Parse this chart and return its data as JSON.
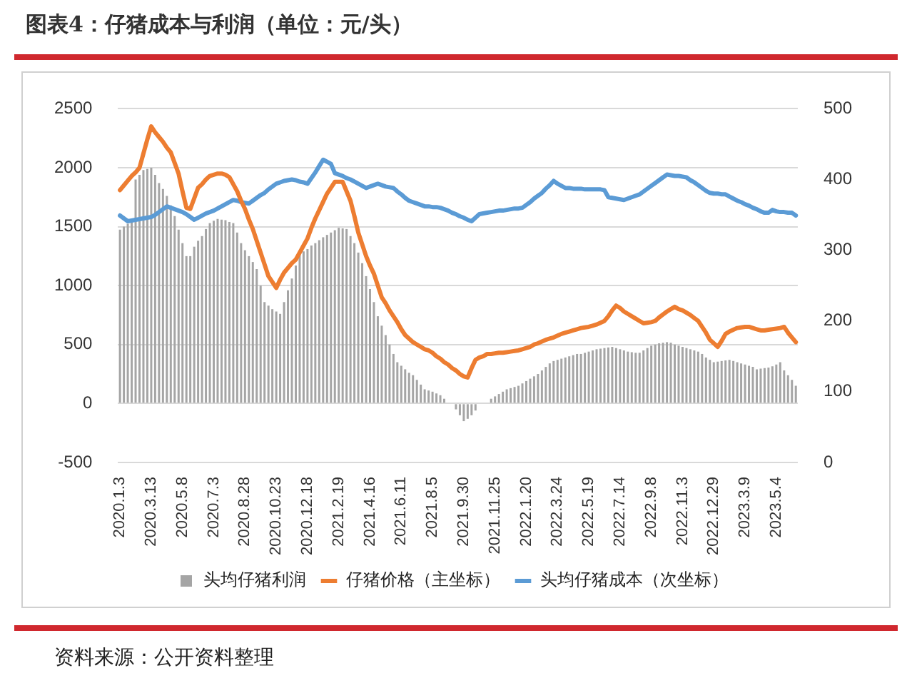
{
  "chart_data": {
    "type": "bar",
    "title": "图表4：仔猪成本与利润（单位：元/头）",
    "categories": [
      "2020.1.3",
      null,
      null,
      null,
      null,
      null,
      null,
      null,
      "2020.3.13",
      null,
      null,
      null,
      null,
      null,
      null,
      null,
      "2020.5.8",
      null,
      null,
      null,
      null,
      null,
      null,
      null,
      "2020.7.3",
      null,
      null,
      null,
      null,
      null,
      null,
      null,
      "2020.8.28",
      null,
      null,
      null,
      null,
      null,
      null,
      null,
      "2020.10.23",
      null,
      null,
      null,
      null,
      null,
      null,
      null,
      "2020.12.18",
      null,
      null,
      null,
      null,
      null,
      null,
      null,
      "2021.2.19",
      null,
      null,
      null,
      null,
      null,
      null,
      null,
      "2021.4.16",
      null,
      null,
      null,
      null,
      null,
      null,
      null,
      "2021.6.11",
      null,
      null,
      null,
      null,
      null,
      null,
      null,
      "2021.8.5",
      null,
      null,
      null,
      null,
      null,
      null,
      null,
      "2021.9.30",
      null,
      null,
      null,
      null,
      null,
      null,
      null,
      "2021.11.25",
      null,
      null,
      null,
      null,
      null,
      null,
      null,
      "2022.1.20",
      null,
      null,
      null,
      null,
      null,
      null,
      null,
      "2022.3.24",
      null,
      null,
      null,
      null,
      null,
      null,
      null,
      "2022.5.19",
      null,
      null,
      null,
      null,
      null,
      null,
      null,
      "2022.7.14",
      null,
      null,
      null,
      null,
      null,
      null,
      null,
      "2022.9.8",
      null,
      null,
      null,
      null,
      null,
      null,
      null,
      "2022.11.3",
      null,
      null,
      null,
      null,
      null,
      null,
      null,
      "2022.12.29",
      null,
      null,
      null,
      null,
      null,
      null,
      null,
      "2023.3.9",
      null,
      null,
      null,
      null,
      null,
      null,
      null,
      "2023.5.4",
      null,
      null,
      null,
      null,
      null
    ],
    "series": [
      {
        "name": "头均仔猪利润",
        "color": "#a5a5a5",
        "values": [
          1475,
          1500,
          1525,
          1550,
          1900,
          1940,
          1980,
          1990,
          2000,
          1940,
          1870,
          1820,
          1760,
          1680,
          1590,
          1475,
          1360,
          1250,
          1250,
          1330,
          1380,
          1420,
          1480,
          1530,
          1550,
          1565,
          1560,
          1555,
          1540,
          1530,
          1450,
          1360,
          1300,
          1250,
          1200,
          1140,
          1000,
          860,
          830,
          800,
          780,
          760,
          860,
          960,
          1060,
          1170,
          1270,
          1290,
          1310,
          1340,
          1360,
          1385,
          1410,
          1430,
          1450,
          1470,
          1490,
          1485,
          1480,
          1420,
          1360,
          1280,
          1190,
          1080,
          970,
          860,
          740,
          660,
          580,
          500,
          420,
          350,
          320,
          290,
          260,
          240,
          200,
          160,
          120,
          110,
          100,
          85,
          70,
          40,
          null,
          0,
          -50,
          -100,
          -150,
          -130,
          -100,
          -60,
          null,
          0,
          null,
          40,
          60,
          80,
          100,
          120,
          130,
          140,
          150,
          170,
          190,
          210,
          230,
          250,
          280,
          310,
          340,
          360,
          370,
          380,
          390,
          400,
          410,
          420,
          420,
          430,
          440,
          450,
          460,
          465,
          470,
          475,
          480,
          470,
          460,
          450,
          440,
          435,
          430,
          430,
          450,
          470,
          490,
          500,
          510,
          515,
          520,
          515,
          500,
          490,
          480,
          470,
          460,
          450,
          440,
          420,
          390,
          370,
          350,
          355,
          360,
          365,
          370,
          360,
          350,
          340,
          330,
          320,
          310,
          290,
          295,
          300,
          305,
          315,
          330,
          350,
          280,
          240,
          200,
          150
        ]
      },
      {
        "name": "仔猪价格（主坐标）",
        "type": "line",
        "color": "#ed7d31",
        "values": [
          1810,
          1850,
          1890,
          1930,
          1960,
          2000,
          2120,
          2240,
          2350,
          2300,
          2260,
          2220,
          2170,
          2130,
          2040,
          1950,
          1800,
          1660,
          1650,
          1740,
          1830,
          1860,
          1900,
          1930,
          1940,
          1950,
          1950,
          1940,
          1920,
          1860,
          1800,
          1720,
          1650,
          1560,
          1480,
          1380,
          1280,
          1180,
          1080,
          1030,
          980,
          1050,
          1110,
          1150,
          1190,
          1220,
          1280,
          1340,
          1400,
          1490,
          1570,
          1640,
          1710,
          1780,
          1830,
          1880,
          1880,
          1880,
          1800,
          1720,
          1590,
          1450,
          1350,
          1250,
          1170,
          1100,
          1000,
          900,
          850,
          790,
          740,
          690,
          630,
          580,
          550,
          520,
          500,
          480,
          460,
          450,
          430,
          400,
          380,
          350,
          330,
          300,
          280,
          250,
          230,
          220,
          300,
          370,
          390,
          400,
          420,
          420,
          425,
          430,
          430,
          435,
          440,
          445,
          450,
          460,
          470,
          480,
          500,
          510,
          525,
          540,
          550,
          560,
          575,
          590,
          600,
          610,
          620,
          630,
          640,
          645,
          650,
          660,
          670,
          685,
          700,
          740,
          790,
          830,
          810,
          780,
          760,
          740,
          720,
          700,
          680,
          685,
          690,
          700,
          730,
          755,
          780,
          800,
          820,
          800,
          790,
          770,
          750,
          725,
          700,
          650,
          600,
          540,
          510,
          480,
          530,
          590,
          610,
          625,
          640,
          645,
          650,
          650,
          640,
          630,
          620,
          620,
          625,
          630,
          635,
          640,
          650,
          600,
          560,
          520
        ]
      },
      {
        "name": "头均仔猪成本（次坐标）",
        "type": "line",
        "axis": "y2",
        "color": "#5b9bd5",
        "values": [
          349,
          345,
          341,
          342,
          343,
          344,
          345,
          346,
          347,
          350,
          354,
          358,
          362,
          360,
          358,
          356,
          354,
          351,
          347,
          343,
          346,
          349,
          352,
          354,
          356,
          359,
          362,
          365,
          368,
          371,
          370,
          368,
          367,
          366,
          370,
          374,
          378,
          381,
          386,
          390,
          394,
          396,
          398,
          399,
          400,
          399,
          397,
          396,
          394,
          402,
          410,
          419,
          428,
          425,
          422,
          409,
          407,
          405,
          402,
          400,
          397,
          394,
          391,
          388,
          390,
          392,
          394,
          392,
          390,
          389,
          388,
          383,
          379,
          374,
          370,
          368,
          366,
          364,
          362,
          362,
          361,
          361,
          360,
          358,
          356,
          353,
          351,
          348,
          346,
          343,
          341,
          346,
          351,
          352,
          353,
          354,
          355,
          356,
          356,
          357,
          358,
          359,
          359,
          360,
          364,
          368,
          373,
          377,
          381,
          387,
          392,
          398,
          394,
          391,
          388,
          388,
          387,
          387,
          387,
          386,
          386,
          386,
          386,
          386,
          385,
          375,
          374,
          373,
          372,
          371,
          373,
          375,
          377,
          379,
          383,
          387,
          391,
          395,
          399,
          403,
          407,
          406,
          405,
          405,
          404,
          403,
          399,
          396,
          392,
          388,
          384,
          381,
          380,
          380,
          379,
          379,
          376,
          373,
          370,
          368,
          365,
          363,
          360,
          358,
          355,
          353,
          353,
          357,
          355,
          354,
          354,
          353,
          353,
          349
        ]
      }
    ],
    "ylim": [
      -500,
      2500
    ],
    "yticks": [
      -500,
      0,
      500,
      1000,
      1500,
      2000,
      2500
    ],
    "y2lim": [
      0,
      500
    ],
    "y2ticks": [
      0,
      100,
      200,
      300,
      400,
      500
    ],
    "grid": "y",
    "legend": "bottom",
    "annotations": [
      "资料来源：公开资料整理"
    ]
  }
}
